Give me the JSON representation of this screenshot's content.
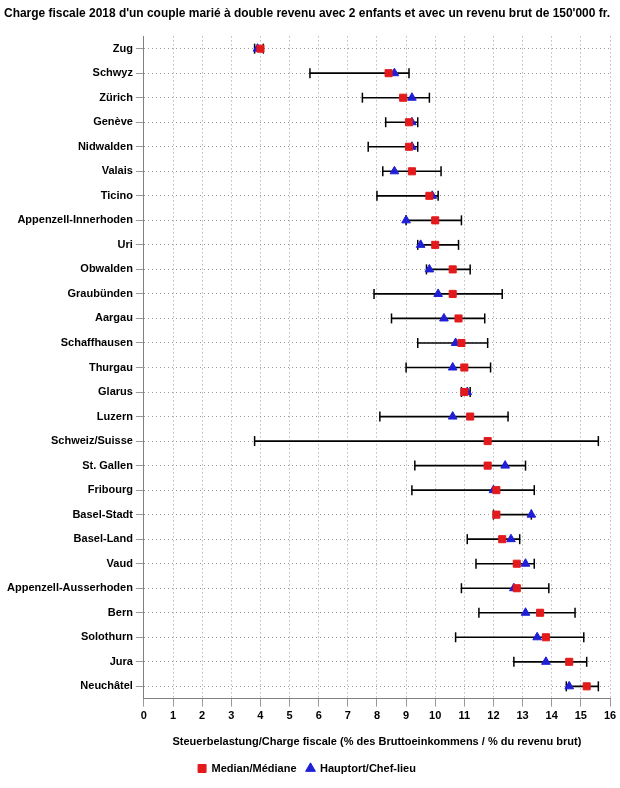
{
  "chart_data": {
    "type": "dot",
    "title": "Charge fiscale 2018 d'un couple marié à double revenu avec 2 enfants et avec un revenu brut de 150'000 fr.",
    "x_label": "Steuerbelastung/Charge fiscale (% des Bruttoeinkommens / % du revenu brut)",
    "orientation": "horizontal",
    "categories": [
      "Zug",
      "Schwyz",
      "Zürich",
      "Genève",
      "Nidwalden",
      "Valais",
      "Ticino",
      "Appenzell-Innerhoden",
      "Uri",
      "Obwalden",
      "Graubünden",
      "Aargau",
      "Schaffhausen",
      "Thurgau",
      "Glarus",
      "Luzern",
      "Schweiz/Suisse",
      "St. Gallen",
      "Fribourg",
      "Basel-Stadt",
      "Basel-Land",
      "Vaud",
      "Appenzell-Ausserhoden",
      "Bern",
      "Solothurn",
      "Jura",
      "Neuchâtel"
    ],
    "series": [
      {
        "name": "Median/Médiane",
        "color": "#e31a1c",
        "marker": "square",
        "values": [
          4.0,
          8.4,
          8.9,
          9.1,
          9.1,
          9.2,
          9.8,
          10.0,
          10.0,
          10.6,
          10.6,
          10.8,
          10.9,
          11.0,
          11.0,
          11.2,
          11.8,
          11.8,
          12.1,
          12.1,
          12.3,
          12.8,
          12.8,
          13.6,
          13.8,
          14.6,
          15.2
        ]
      },
      {
        "name": "Hauptort/Chef-lieu",
        "color": "#1f1fd6",
        "marker": "triangle",
        "values": [
          3.9,
          8.6,
          9.2,
          9.2,
          9.2,
          8.6,
          9.9,
          9.0,
          9.5,
          9.8,
          10.1,
          10.3,
          10.7,
          10.6,
          11.1,
          10.6,
          null,
          12.4,
          12.0,
          13.3,
          12.6,
          13.1,
          12.7,
          13.1,
          13.5,
          13.8,
          14.6
        ]
      }
    ],
    "min": [
      3.8,
      5.7,
      7.5,
      8.3,
      7.7,
      8.2,
      8.0,
      9.0,
      9.4,
      9.7,
      7.9,
      8.5,
      9.4,
      9.0,
      10.9,
      8.1,
      3.8,
      9.3,
      9.2,
      12.0,
      11.1,
      11.4,
      10.9,
      11.5,
      10.7,
      12.7,
      14.5
    ],
    "max": [
      4.1,
      9.1,
      9.8,
      9.4,
      9.4,
      10.2,
      10.1,
      10.9,
      10.8,
      11.2,
      12.3,
      11.7,
      11.8,
      11.9,
      11.2,
      12.5,
      15.6,
      13.1,
      13.4,
      13.3,
      12.9,
      13.4,
      13.9,
      14.8,
      15.1,
      15.2,
      15.6
    ],
    "xlim": [
      0,
      16
    ],
    "xticks": [
      0,
      1,
      2,
      3,
      4,
      5,
      6,
      7,
      8,
      9,
      10,
      11,
      12,
      13,
      14,
      15,
      16
    ],
    "grid": true,
    "legend": "bottom"
  }
}
